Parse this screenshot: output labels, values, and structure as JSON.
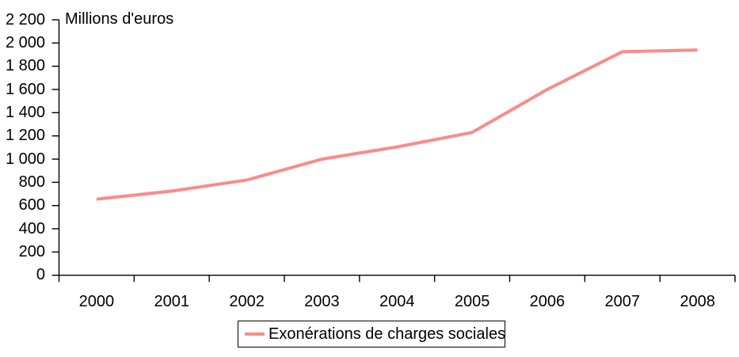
{
  "chart_data": {
    "type": "line",
    "title": "Millions d'euros",
    "categories": [
      "2000",
      "2001",
      "2002",
      "2003",
      "2004",
      "2005",
      "2006",
      "2007",
      "2008"
    ],
    "series": [
      {
        "name": "Exonérations de charges sociales",
        "color": "#fb8b8b",
        "values": [
          655,
          725,
          820,
          1000,
          1105,
          1230,
          1600,
          1925,
          1940
        ]
      }
    ],
    "ylim": [
      0,
      2200
    ],
    "ytick_step": 200,
    "ytick_labels": [
      "0",
      "200",
      "400",
      "600",
      "800",
      "1 000",
      "1 200",
      "1 400",
      "1 600",
      "1 800",
      "2 000",
      "2 200"
    ],
    "grid": false,
    "legend_position": "bottom-center",
    "axis_color": "#000000",
    "background": "#ffffff"
  }
}
